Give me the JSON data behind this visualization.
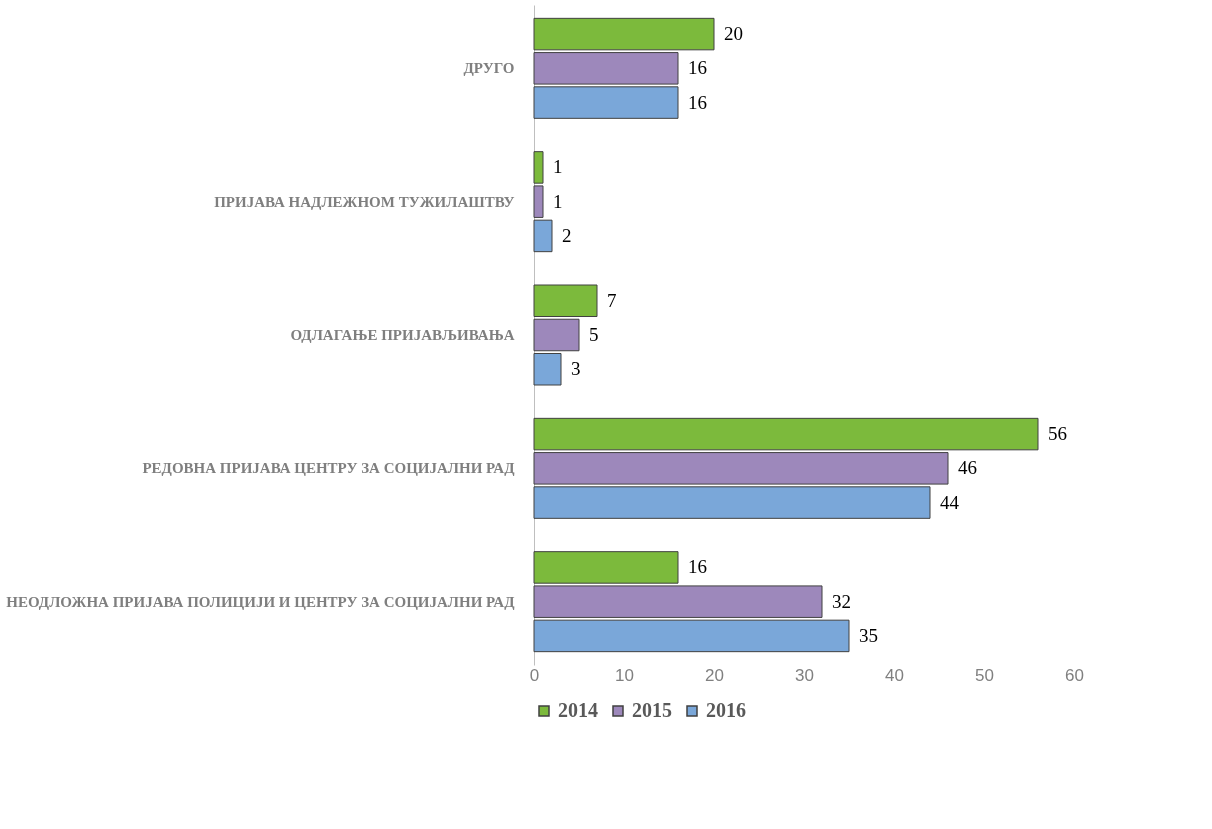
{
  "chart_data": {
    "type": "bar",
    "orientation": "horizontal",
    "categories": [
      "ДРУГО",
      "ПРИЈАВА НАДЛЕЖНОМ ТУЖИЛАШТВУ",
      "ОДЛАГАЊЕ ПРИЈАВЉИВАЊА",
      "РЕДОВНА ПРИЈАВА ЦЕНТРУ ЗА СОЦИЈАЛНИ РАД",
      "НЕОДЛОЖНА ПРИЈАВА ПОЛИЦИЈИ И ЦЕНТРУ ЗА СОЦИЈАЛНИ РАД"
    ],
    "series": [
      {
        "name": "2014",
        "color": "#7cba3c",
        "values": [
          20,
          1,
          7,
          56,
          16
        ]
      },
      {
        "name": "2015",
        "color": "#9d88bb",
        "values": [
          16,
          1,
          5,
          46,
          32
        ]
      },
      {
        "name": "2016",
        "color": "#7aa7d9",
        "values": [
          16,
          2,
          3,
          44,
          35
        ]
      }
    ],
    "xlim": [
      0,
      60
    ],
    "xticks": [
      0,
      10,
      20,
      30,
      40,
      50,
      60
    ],
    "grid": false,
    "legend": "bottom",
    "data_labels": true
  }
}
